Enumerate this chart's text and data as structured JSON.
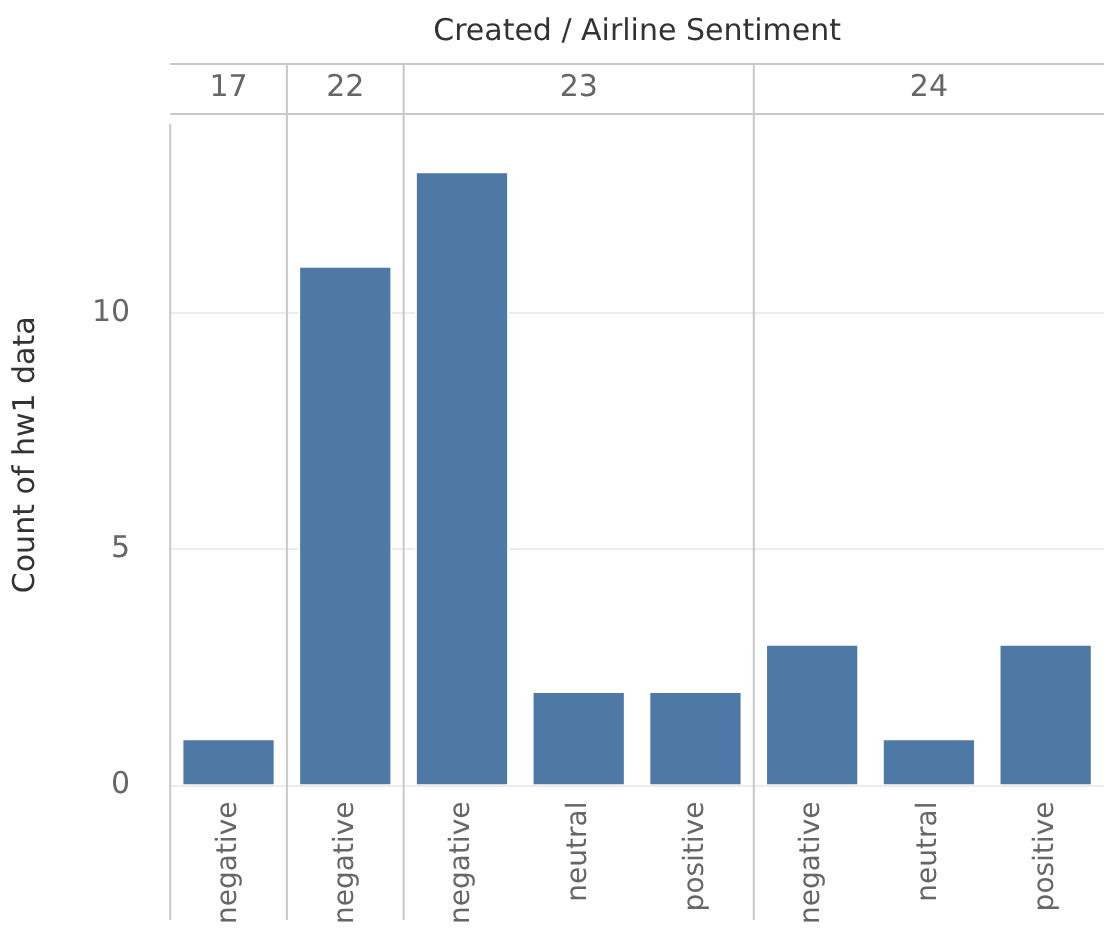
{
  "chart_data": {
    "type": "bar",
    "title": "Created / Airline Sentiment",
    "ylabel": "Count of hw1 data",
    "categories": [
      "negative",
      "negative",
      "negative",
      "neutral",
      "positive",
      "negative",
      "neutral",
      "positive"
    ],
    "values": [
      1,
      11,
      13,
      2,
      2,
      3,
      1,
      3
    ],
    "color": "#4e79a7",
    "ylim": [
      0,
      14
    ],
    "yticks": [
      0,
      5,
      10
    ],
    "grid": "y",
    "annotations": [
      "17",
      "22",
      "23",
      "24"
    ]
  }
}
